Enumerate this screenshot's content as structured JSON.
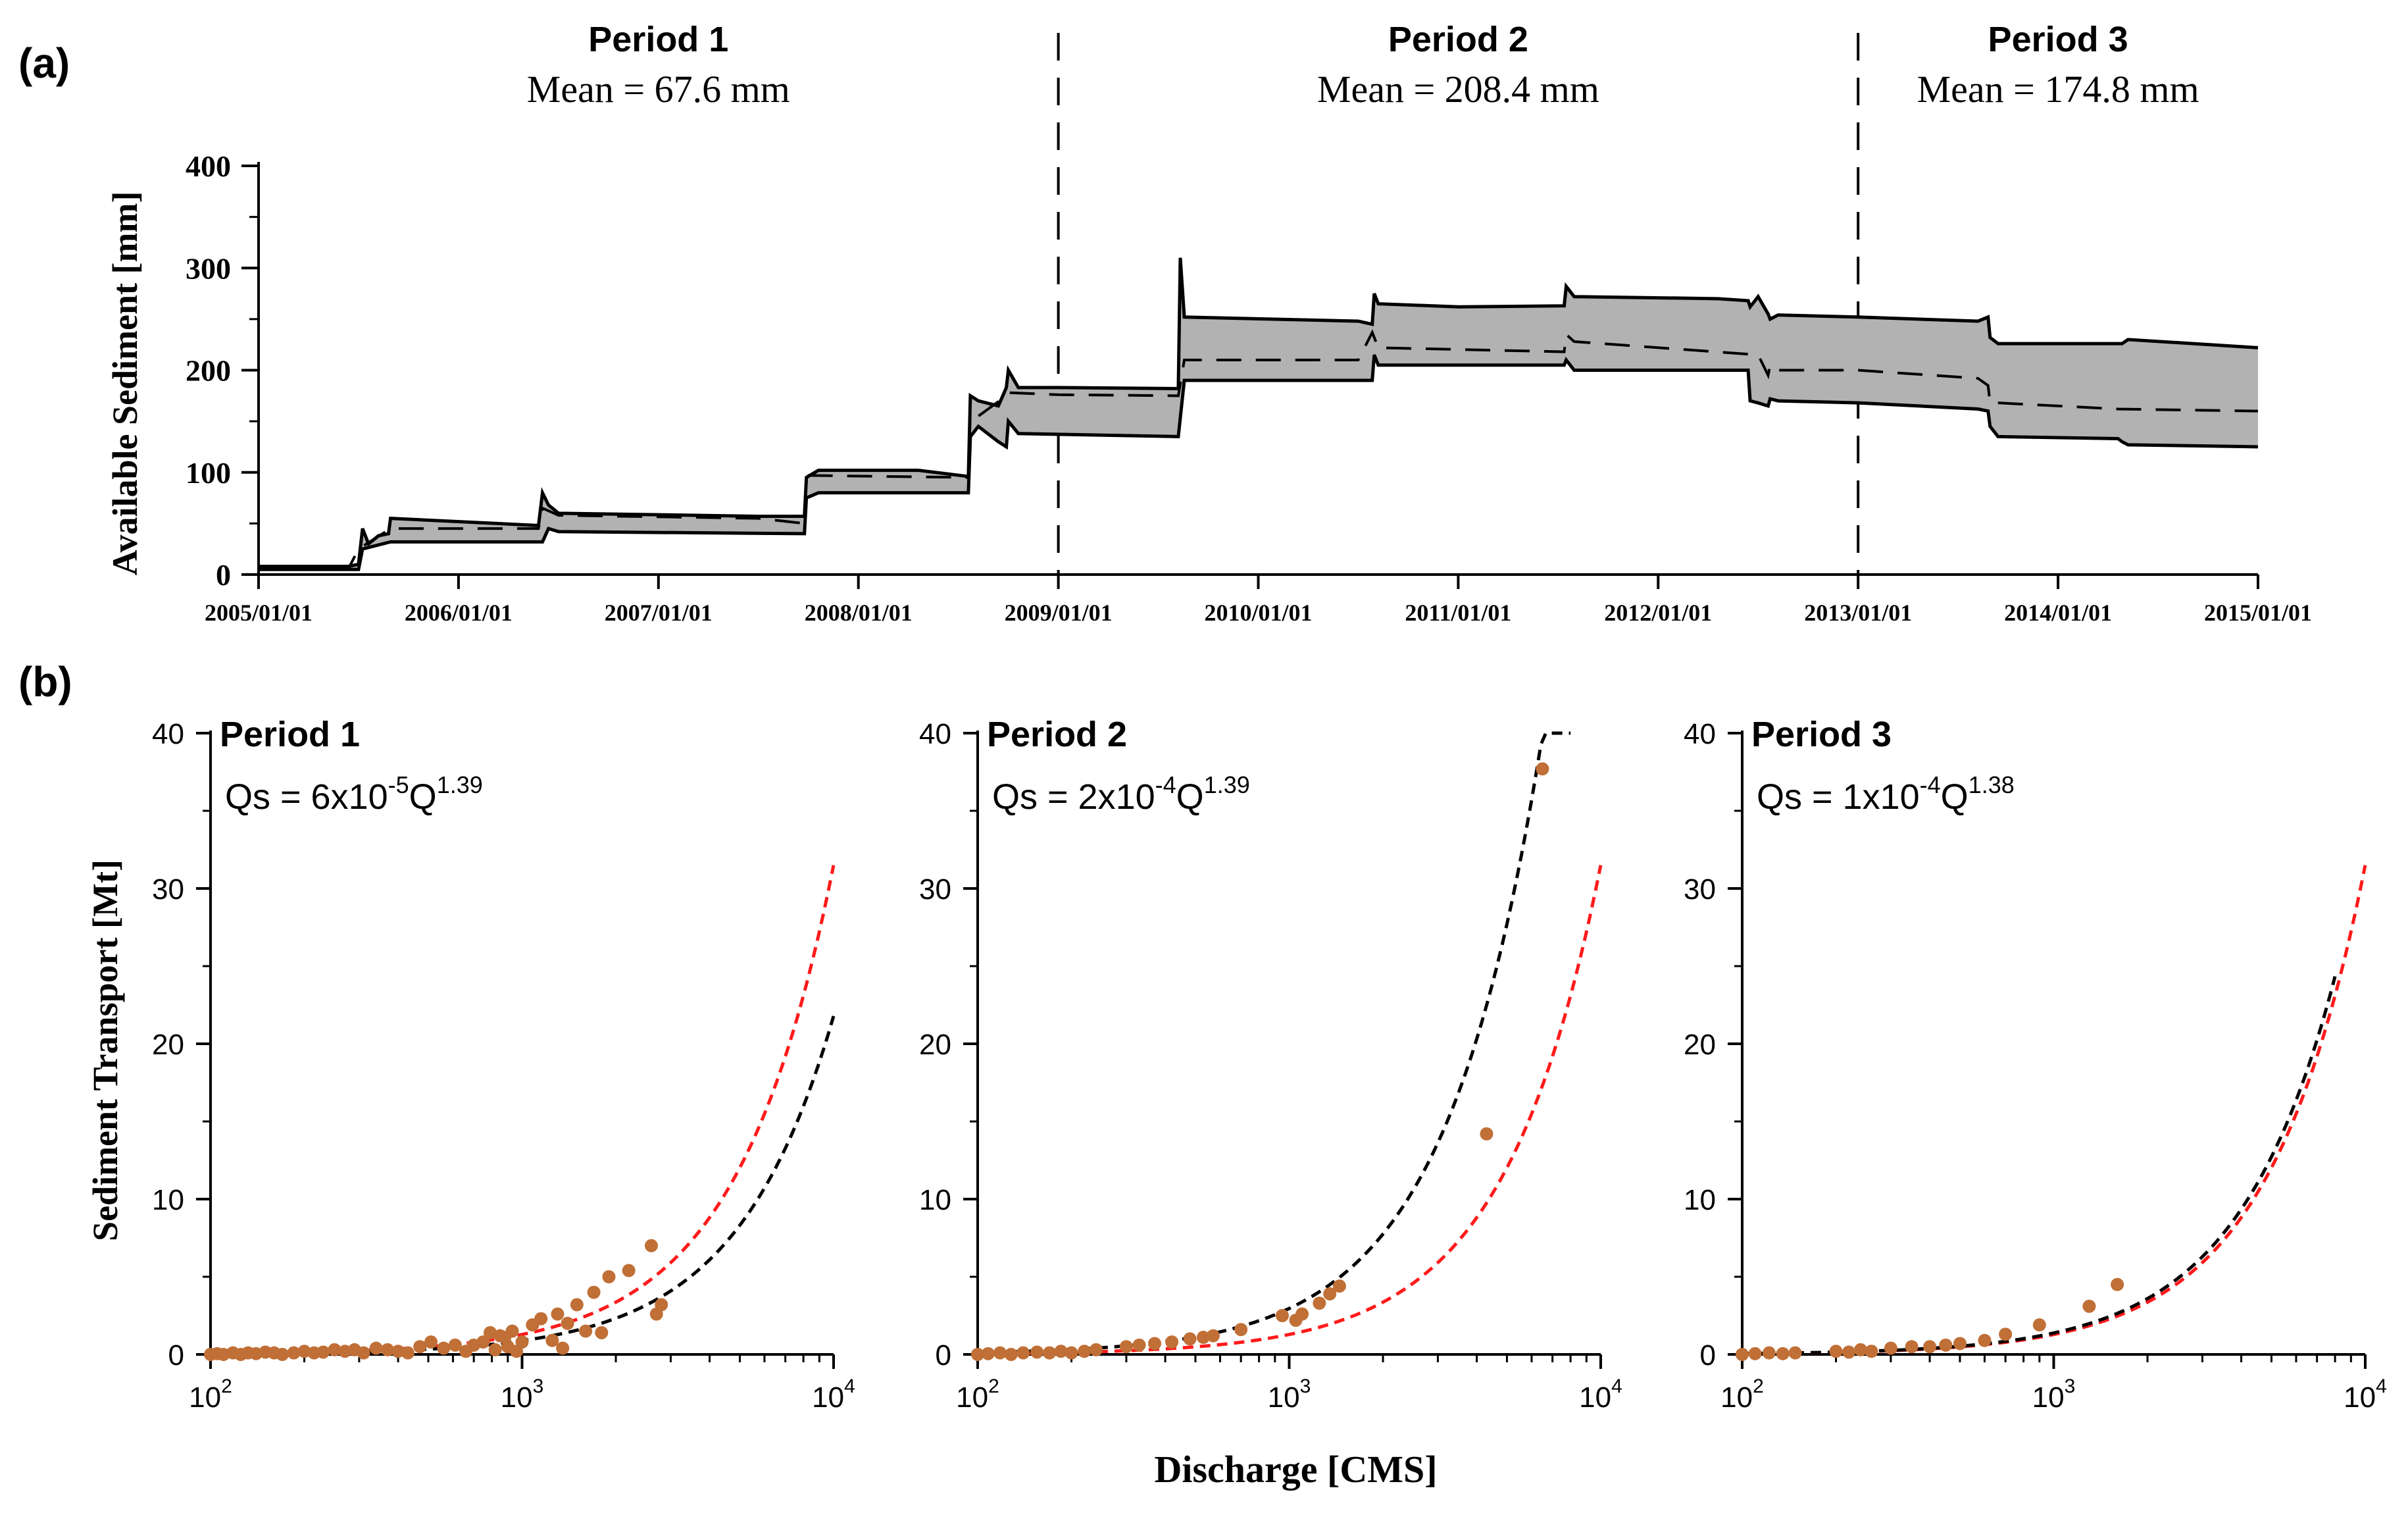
{
  "chart_data": [
    {
      "id": "a",
      "type": "area",
      "panel_label": "(a)",
      "ylabel": "Available Sediment [mm]",
      "xlabel": "",
      "ylim": [
        0,
        400
      ],
      "yticks": [
        0,
        100,
        200,
        300,
        400
      ],
      "xlim_years": [
        2005.0,
        2015.0
      ],
      "xtick_labels": [
        "2005/01/01",
        "2006/01/01",
        "2007/01/01",
        "2008/01/01",
        "2009/01/01",
        "2010/01/01",
        "2011/01/01",
        "2012/01/01",
        "2013/01/01",
        "2014/01/01",
        "2015/01/01"
      ],
      "band_color": "#b2b2b2",
      "period_dividers_years": [
        2009.0,
        2013.0
      ],
      "periods": [
        {
          "name": "Period 1",
          "mean_label": "Mean = 67.6 mm"
        },
        {
          "name": "Period 2",
          "mean_label": "Mean = 208.4 mm"
        },
        {
          "name": "Period 3",
          "mean_label": "Mean = 174.8 mm"
        }
      ],
      "series": [
        {
          "name": "upper",
          "style": "solid",
          "x": [
            2005.0,
            2005.45,
            2005.5,
            2005.52,
            2005.55,
            2005.6,
            2005.65,
            2005.66,
            2006.4,
            2006.42,
            2006.45,
            2006.5,
            2007.5,
            2007.73,
            2007.74,
            2007.8,
            2008.3,
            2008.55,
            2008.56,
            2008.6,
            2008.7,
            2008.74,
            2008.75,
            2008.8,
            2009.0,
            2009.6,
            2009.61,
            2009.63,
            2010.5,
            2010.57,
            2010.58,
            2010.6,
            2011.0,
            2011.53,
            2011.54,
            2011.58,
            2012.3,
            2012.45,
            2012.46,
            2012.5,
            2012.55,
            2012.56,
            2012.6,
            2013.0,
            2013.6,
            2013.65,
            2013.66,
            2013.7,
            2014.3,
            2014.32,
            2014.35,
            2015.0
          ],
          "y": [
            8,
            8,
            10,
            45,
            30,
            38,
            40,
            55,
            48,
            80,
            68,
            60,
            57,
            57,
            95,
            102,
            102,
            96,
            175,
            170,
            165,
            183,
            200,
            183,
            183,
            182,
            310,
            252,
            248,
            245,
            275,
            265,
            262,
            263,
            282,
            272,
            270,
            268,
            262,
            272,
            255,
            250,
            254,
            252,
            248,
            252,
            232,
            226,
            226,
            226,
            230,
            222
          ]
        },
        {
          "name": "mean",
          "style": "dashed",
          "x": [
            2005.0,
            2005.45,
            2005.5,
            2005.66,
            2006.4,
            2006.42,
            2006.5,
            2007.5,
            2007.73,
            2007.74,
            2008.55,
            2008.56,
            2008.6,
            2008.74,
            2008.75,
            2009.0,
            2009.6,
            2009.63,
            2010.5,
            2010.57,
            2010.6,
            2011.53,
            2011.54,
            2011.58,
            2012.5,
            2012.55,
            2012.56,
            2012.6,
            2013.0,
            2013.6,
            2013.65,
            2013.66,
            2013.7,
            2014.3,
            2015.0
          ],
          "y": [
            6,
            6,
            25,
            45,
            45,
            65,
            58,
            55,
            50,
            97,
            95,
            160,
            155,
            175,
            178,
            176,
            175,
            210,
            210,
            237,
            222,
            218,
            235,
            228,
            215,
            195,
            205,
            200,
            200,
            192,
            185,
            168,
            168,
            162,
            160
          ]
        },
        {
          "name": "lower",
          "style": "solid",
          "x": [
            2005.0,
            2005.45,
            2005.5,
            2005.52,
            2005.66,
            2006.42,
            2006.45,
            2006.5,
            2007.73,
            2007.74,
            2007.8,
            2008.55,
            2008.56,
            2008.6,
            2008.7,
            2008.74,
            2008.75,
            2008.8,
            2009.6,
            2009.63,
            2010.57,
            2010.58,
            2010.6,
            2011.53,
            2011.54,
            2011.58,
            2012.45,
            2012.46,
            2012.5,
            2012.55,
            2012.56,
            2012.6,
            2013.0,
            2013.6,
            2013.65,
            2013.66,
            2013.7,
            2014.3,
            2014.32,
            2014.35,
            2015.0
          ],
          "y": [
            5,
            5,
            5,
            25,
            32,
            32,
            45,
            42,
            40,
            75,
            80,
            80,
            135,
            145,
            130,
            125,
            150,
            138,
            135,
            190,
            190,
            215,
            205,
            205,
            210,
            200,
            200,
            170,
            168,
            165,
            172,
            170,
            168,
            162,
            160,
            145,
            135,
            133,
            130,
            127,
            125
          ]
        }
      ]
    },
    {
      "id": "b1",
      "type": "scatter",
      "panel_label": "(b)",
      "title": "Period 1",
      "equation": {
        "prefix": "Qs = ",
        "coef_base": "6x10",
        "coef_exp": "-5",
        "var": "Q",
        "power": "1.39"
      },
      "xlabel": "Discharge [CMS]",
      "ylabel": "Sediment Transport [Mt]",
      "xscale": "log",
      "xlim": [
        100,
        10000
      ],
      "xtick_base": "10",
      "xtick_exponents": [
        "2",
        "3",
        "4"
      ],
      "ylim": [
        0,
        40
      ],
      "yticks": [
        0,
        10,
        20,
        30,
        40
      ],
      "points": {
        "color": "#c06f36",
        "x": [
          100,
          105,
          110,
          118,
          125,
          132,
          140,
          150,
          160,
          170,
          185,
          200,
          215,
          230,
          250,
          270,
          290,
          310,
          340,
          370,
          400,
          430,
          470,
          510,
          560,
          610,
          660,
          700,
          750,
          790,
          820,
          850,
          880,
          900,
          930,
          960,
          1000,
          1080,
          1150,
          1250,
          1300,
          1350,
          1400,
          1500,
          1600,
          1700,
          1800,
          1900,
          2200,
          2600,
          2700,
          2800
        ],
        "y": [
          0.0,
          0.05,
          0.0,
          0.1,
          0.0,
          0.1,
          0.05,
          0.15,
          0.1,
          0.0,
          0.1,
          0.2,
          0.1,
          0.15,
          0.3,
          0.2,
          0.3,
          0.1,
          0.4,
          0.3,
          0.2,
          0.1,
          0.5,
          0.8,
          0.4,
          0.6,
          0.2,
          0.6,
          0.8,
          1.4,
          0.3,
          1.2,
          1.1,
          0.5,
          1.5,
          0.2,
          0.8,
          1.9,
          2.3,
          0.9,
          2.6,
          0.4,
          2.0,
          3.2,
          1.5,
          4.0,
          1.4,
          5.0,
          5.4,
          7.0,
          2.6,
          3.2
        ]
      },
      "fit_black": {
        "a": 6e-05,
        "b": 1.39,
        "x_end": 10000
      },
      "fit_red": {
        "x_start": 100,
        "x_end": 10000,
        "y_at_end": 31.5
      }
    },
    {
      "id": "b2",
      "type": "scatter",
      "title": "Period 2",
      "equation": {
        "prefix": "Qs = ",
        "coef_base": "2x10",
        "coef_exp": "-4",
        "var": "Q",
        "power": "1.39"
      },
      "xlabel": "Discharge [CMS]",
      "xscale": "log",
      "xlim": [
        100,
        10000
      ],
      "xtick_base": "10",
      "xtick_exponents": [
        "2",
        "3",
        "4"
      ],
      "ylim": [
        0,
        40
      ],
      "yticks": [
        0,
        10,
        20,
        30,
        40
      ],
      "points": {
        "color": "#c06f36",
        "x": [
          100,
          108,
          118,
          128,
          140,
          155,
          170,
          185,
          200,
          220,
          240,
          300,
          330,
          370,
          420,
          480,
          530,
          570,
          700,
          950,
          1050,
          1100,
          1250,
          1350,
          1450,
          4300,
          6500
        ],
        "y": [
          0.0,
          0.05,
          0.1,
          0.0,
          0.1,
          0.15,
          0.1,
          0.2,
          0.1,
          0.2,
          0.3,
          0.5,
          0.6,
          0.7,
          0.8,
          1.0,
          1.1,
          1.2,
          1.6,
          2.5,
          2.2,
          2.6,
          3.3,
          3.9,
          4.4,
          14.2,
          37.7
        ]
      },
      "fit_black": {
        "a": 0.0002,
        "b": 1.39,
        "x_end": 8000
      },
      "fit_red": {
        "x_start": 100,
        "x_end": 10000,
        "y_at_end": 31.5
      }
    },
    {
      "id": "b3",
      "type": "scatter",
      "title": "Period 3",
      "equation": {
        "prefix": "Qs = ",
        "coef_base": "1x10",
        "coef_exp": "-4",
        "var": "Q",
        "power": "1.38"
      },
      "xlabel": "Discharge [CMS]",
      "xscale": "log",
      "xlim": [
        100,
        10000
      ],
      "xtick_base": "10",
      "xtick_exponents": [
        "2",
        "3",
        "4"
      ],
      "ylim": [
        0,
        40
      ],
      "yticks": [
        0,
        10,
        20,
        30,
        40
      ],
      "points": {
        "color": "#c06f36",
        "x": [
          100,
          110,
          122,
          135,
          148,
          200,
          220,
          240,
          260,
          300,
          350,
          400,
          450,
          500,
          600,
          700,
          900,
          1300,
          1600
        ],
        "y": [
          0.0,
          0.05,
          0.1,
          0.05,
          0.1,
          0.2,
          0.15,
          0.3,
          0.2,
          0.4,
          0.5,
          0.5,
          0.6,
          0.7,
          0.9,
          1.3,
          1.9,
          3.1,
          4.5
        ]
      },
      "fit_black": {
        "a": 0.0001,
        "b": 1.38,
        "x_end": 8000
      },
      "fit_red": {
        "x_start": 100,
        "x_end": 10000,
        "y_at_end": 31.5
      }
    }
  ]
}
